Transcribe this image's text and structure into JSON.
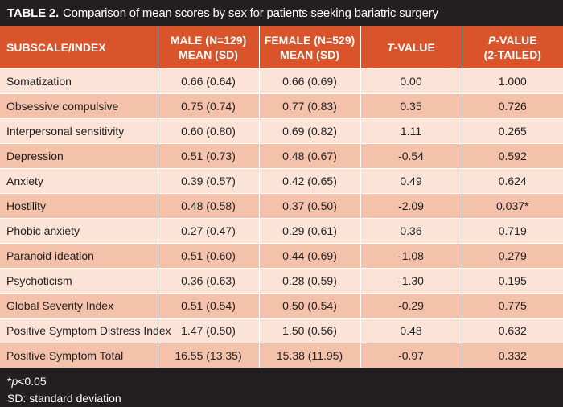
{
  "caption": {
    "lead": "TABLE 2.",
    "text": "Comparison of mean scores by sex for patients seeking bariatric surgery"
  },
  "header": {
    "col0": "SUBSCALE/INDEX",
    "col1_line1": "MALE (N=129)",
    "col1_line2": "MEAN (SD)",
    "col2_line1": "FEMALE (N=529)",
    "col2_line2": "MEAN (SD)",
    "col3_italic": "T",
    "col3_rest": "-VALUE",
    "col4_italic": "P",
    "col4_rest": "-VALUE",
    "col4_line2": "(2-TAILED)"
  },
  "rows": [
    {
      "label": "Somatization",
      "male": "0.66 (0.64)",
      "female": "0.66 (0.69)",
      "t": "0.00",
      "p": "1.000"
    },
    {
      "label": "Obsessive compulsive",
      "male": "0.75 (0.74)",
      "female": "0.77 (0.83)",
      "t": "0.35",
      "p": "0.726"
    },
    {
      "label": "Interpersonal sensitivity",
      "male": "0.60 (0.80)",
      "female": "0.69 (0.82)",
      "t": "1.11",
      "p": "0.265"
    },
    {
      "label": "Depression",
      "male": "0.51 (0.73)",
      "female": "0.48 (0.67)",
      "t": "-0.54",
      "p": "0.592"
    },
    {
      "label": "Anxiety",
      "male": "0.39 (0.57)",
      "female": "0.42 (0.65)",
      "t": "0.49",
      "p": "0.624"
    },
    {
      "label": "Hostility",
      "male": "0.48 (0.58)",
      "female": "0.37 (0.50)",
      "t": "-2.09",
      "p": "0.037*"
    },
    {
      "label": "Phobic anxiety",
      "male": "0.27 (0.47)",
      "female": "0.29 (0.61)",
      "t": "0.36",
      "p": "0.719"
    },
    {
      "label": "Paranoid ideation",
      "male": "0.51 (0.60)",
      "female": "0.44 (0.69)",
      "t": "-1.08",
      "p": "0.279"
    },
    {
      "label": "Psychoticism",
      "male": "0.36 (0.63)",
      "female": "0.28 (0.59)",
      "t": "-1.30",
      "p": "0.195"
    },
    {
      "label": "Global Severity Index",
      "male": "0.51 (0.54)",
      "female": "0.50 (0.54)",
      "t": "-0.29",
      "p": "0.775"
    },
    {
      "label": "Positive Symptom Distress Index",
      "male": "1.47 (0.50)",
      "female": "1.50 (0.56)",
      "t": "0.48",
      "p": "0.632"
    },
    {
      "label": "Positive Symptom Total",
      "male": "16.55 (13.35)",
      "female": "15.38 (11.95)",
      "t": "-0.97",
      "p": "0.332"
    }
  ],
  "footnotes": {
    "sig_star": "*",
    "sig_p": "p",
    "sig_rest": "<0.05",
    "sd": "SD: standard deviation"
  },
  "colors": {
    "header_bg": "#d9532b",
    "row_light": "#fbe3d7",
    "row_dark": "#f4c2ab",
    "frame_bg": "#231f20"
  }
}
